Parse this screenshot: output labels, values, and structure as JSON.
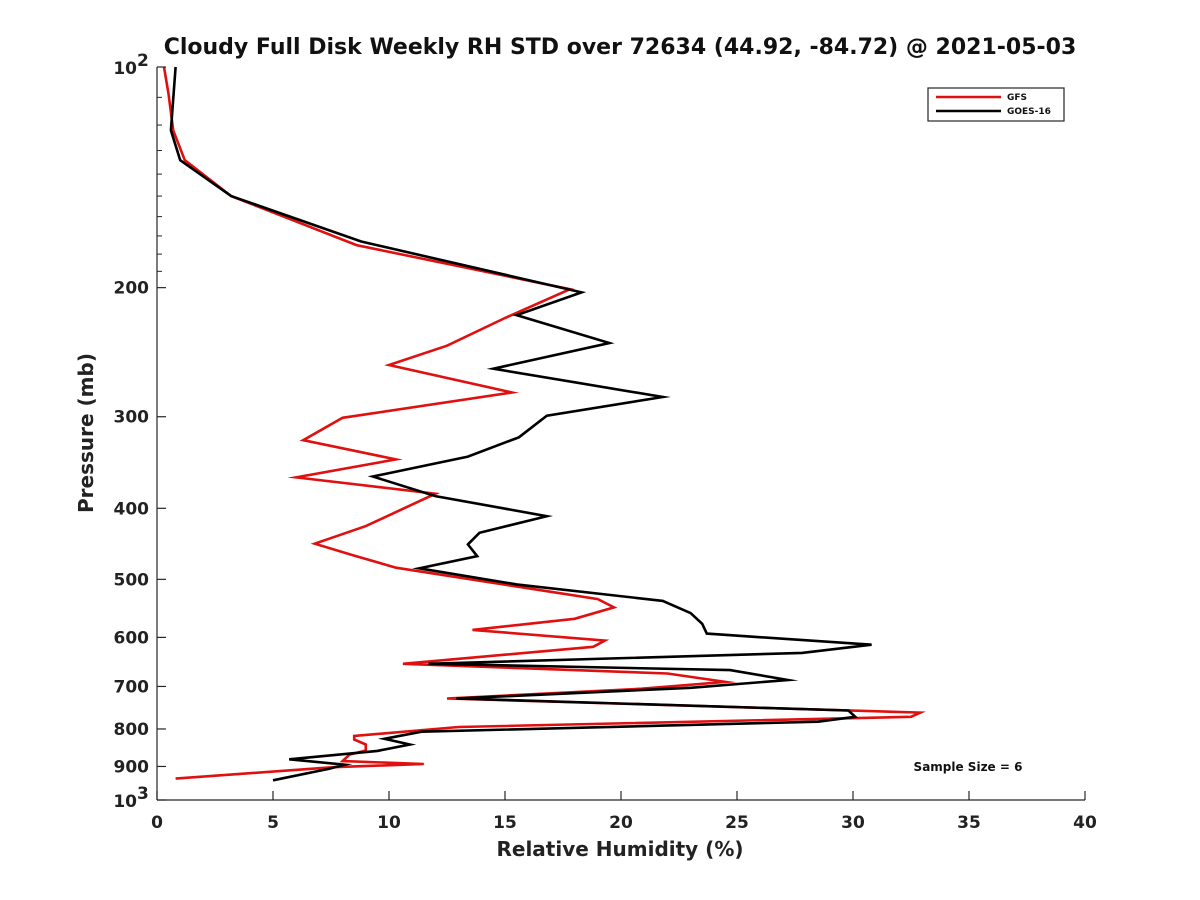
{
  "chart_data": {
    "type": "line",
    "title": "Cloudy Full Disk Weekly RH STD over 72634 (44.92, -84.72) @ 2021-05-03",
    "xlabel": "Relative Humidity (%)",
    "ylabel": "Pressure (mb)",
    "xlim": [
      0,
      40
    ],
    "ylim": [
      100,
      1000
    ],
    "y_scale": "log",
    "y_reversed": true,
    "grid": false,
    "legend_position": "top-right",
    "x_ticks": [
      0,
      5,
      10,
      15,
      20,
      25,
      30,
      35,
      40
    ],
    "y_ticks": [
      {
        "value": 100,
        "base": "10",
        "exp": "2"
      },
      {
        "value": 200,
        "label": "200"
      },
      {
        "value": 300,
        "label": "300"
      },
      {
        "value": 400,
        "label": "400"
      },
      {
        "value": 500,
        "label": "500"
      },
      {
        "value": 600,
        "label": "600"
      },
      {
        "value": 700,
        "label": "700"
      },
      {
        "value": 800,
        "label": "800"
      },
      {
        "value": 900,
        "label": "900"
      },
      {
        "value": 1000,
        "base": "10",
        "exp": "3"
      }
    ],
    "series": [
      {
        "name": "GFS",
        "color": "#e01010",
        "points": [
          [
            0.3,
            100
          ],
          [
            0.5,
            109
          ],
          [
            0.7,
            122
          ],
          [
            1.2,
            134
          ],
          [
            3.2,
            150
          ],
          [
            8.6,
            175
          ],
          [
            17.8,
            201
          ],
          [
            15.0,
            220
          ],
          [
            12.5,
            240
          ],
          [
            10.0,
            255
          ],
          [
            15.3,
            278
          ],
          [
            8.0,
            301
          ],
          [
            6.3,
            323
          ],
          [
            10.3,
            343
          ],
          [
            6.0,
            363
          ],
          [
            12.0,
            382
          ],
          [
            9.0,
            423
          ],
          [
            6.8,
            447
          ],
          [
            8.5,
            464
          ],
          [
            10.3,
            482
          ],
          [
            19.0,
            532
          ],
          [
            19.7,
            546
          ],
          [
            18.0,
            566
          ],
          [
            13.6,
            586
          ],
          [
            19.3,
            606
          ],
          [
            18.8,
            618
          ],
          [
            10.6,
            652
          ],
          [
            22.0,
            672
          ],
          [
            24.5,
            690
          ],
          [
            20.9,
            705
          ],
          [
            12.5,
            727
          ],
          [
            32.9,
            760
          ],
          [
            32.5,
            770
          ],
          [
            13.0,
            795
          ],
          [
            8.5,
            818
          ],
          [
            8.5,
            827
          ],
          [
            9.0,
            840
          ],
          [
            9.0,
            856
          ],
          [
            8.3,
            867
          ],
          [
            8.0,
            885
          ],
          [
            11.5,
            893
          ],
          [
            7.6,
            902
          ],
          [
            0.8,
            935
          ]
        ]
      },
      {
        "name": "GOES-16",
        "color": "#000000",
        "points": [
          [
            0.8,
            100
          ],
          [
            0.6,
            122
          ],
          [
            1.0,
            134
          ],
          [
            3.2,
            150
          ],
          [
            8.8,
            173
          ],
          [
            18.3,
            203
          ],
          [
            15.5,
            218
          ],
          [
            19.5,
            238
          ],
          [
            14.5,
            258
          ],
          [
            21.8,
            282
          ],
          [
            16.8,
            299
          ],
          [
            15.6,
            320
          ],
          [
            13.4,
            340
          ],
          [
            9.3,
            362
          ],
          [
            12.0,
            385
          ],
          [
            16.8,
            410
          ],
          [
            13.9,
            432
          ],
          [
            13.4,
            448
          ],
          [
            13.8,
            465
          ],
          [
            11.3,
            483
          ],
          [
            15.5,
            508
          ],
          [
            21.8,
            535
          ],
          [
            23.0,
            556
          ],
          [
            23.5,
            575
          ],
          [
            23.7,
            593
          ],
          [
            30.8,
            614
          ],
          [
            27.8,
            630
          ],
          [
            11.7,
            652
          ],
          [
            24.7,
            665
          ],
          [
            27.2,
            686
          ],
          [
            23.0,
            703
          ],
          [
            12.9,
            727
          ],
          [
            29.8,
            755
          ],
          [
            30.1,
            770
          ],
          [
            28.5,
            782
          ],
          [
            11.4,
            807
          ],
          [
            9.8,
            825
          ],
          [
            10.9,
            840
          ],
          [
            9.5,
            857
          ],
          [
            5.7,
            880
          ],
          [
            8.1,
            895
          ],
          [
            7.4,
            907
          ],
          [
            5.0,
            940
          ]
        ]
      }
    ],
    "annotations": [
      {
        "text": "Sample Size = 6"
      }
    ]
  }
}
